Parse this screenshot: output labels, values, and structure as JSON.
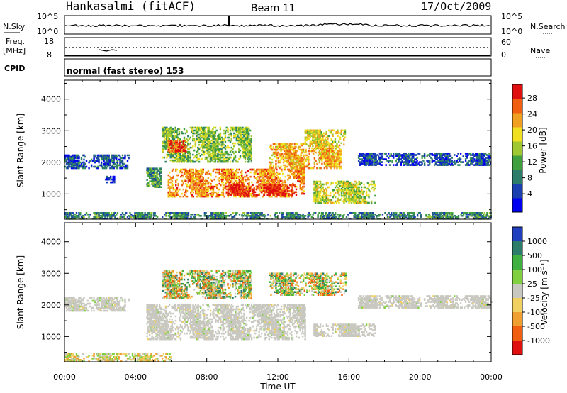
{
  "header": {
    "station": "Hankasalmi (fitACF)",
    "beam": "Beam 11",
    "date": "17/Oct/2009"
  },
  "nsky_panel": {
    "label": "N.Sky",
    "ticks": [
      "10^5",
      "10^0"
    ],
    "right_label": "N.Search",
    "right_ticks": [
      "10^5",
      "10^0"
    ]
  },
  "freq_panel": {
    "label_line1": "Freq.",
    "label_line2": "[MHz]",
    "ticks": [
      "18",
      "8"
    ],
    "right_label": "Nave",
    "right_ticks": [
      "60",
      "0"
    ]
  },
  "cpid_panel": {
    "label": "CPID",
    "text": "normal (fast stereo) 153"
  },
  "chart_data": [
    {
      "type": "heatmap",
      "name": "power",
      "ylabel": "Slant Range [km]",
      "yticks": [
        "4000",
        "3000",
        "2000",
        "1000"
      ],
      "ylim": [
        200,
        4600
      ],
      "xlim": [
        0,
        24
      ],
      "colorbar": {
        "label": "Power [dB]",
        "ticks": [
          "28",
          "24",
          "20",
          "16",
          "12",
          "8",
          "4"
        ],
        "colors": [
          "#0000f0",
          "#1a40b0",
          "#2e7d6a",
          "#40a040",
          "#a0c830",
          "#f0e020",
          "#f0a020",
          "#f06010",
          "#e01010"
        ]
      },
      "regions": [
        {
          "t0": 0.0,
          "t1": 3.6,
          "r0": 1800,
          "r1": 2250,
          "level": 0.2
        },
        {
          "t0": 2.2,
          "t1": 2.8,
          "r0": 1350,
          "r1": 1550,
          "level": 0.12
        },
        {
          "t0": 4.6,
          "t1": 5.4,
          "r0": 1200,
          "r1": 1800,
          "level": 0.35
        },
        {
          "t0": 5.5,
          "t1": 10.5,
          "r0": 2000,
          "r1": 3100,
          "level": 0.45
        },
        {
          "t0": 5.8,
          "t1": 6.8,
          "r0": 2300,
          "r1": 2700,
          "level": 0.85
        },
        {
          "t0": 5.8,
          "t1": 13.5,
          "r0": 900,
          "r1": 1800,
          "level": 0.75
        },
        {
          "t0": 9.0,
          "t1": 13.0,
          "r0": 950,
          "r1": 1300,
          "level": 0.95
        },
        {
          "t0": 11.5,
          "t1": 15.5,
          "r0": 1800,
          "r1": 2600,
          "level": 0.7
        },
        {
          "t0": 13.5,
          "t1": 15.8,
          "r0": 2500,
          "r1": 3000,
          "level": 0.6
        },
        {
          "t0": 14.0,
          "t1": 17.5,
          "r0": 700,
          "r1": 1400,
          "level": 0.55
        },
        {
          "t0": 16.5,
          "t1": 24.0,
          "r0": 1900,
          "r1": 2300,
          "level": 0.18
        },
        {
          "t0": 0.0,
          "t1": 24.0,
          "r0": 200,
          "r1": 400,
          "level": 0.3
        }
      ]
    },
    {
      "type": "heatmap",
      "name": "velocity",
      "ylabel": "Slant Range [km]",
      "yticks": [
        "4000",
        "3000",
        "2000",
        "1000"
      ],
      "ylim": [
        200,
        4600
      ],
      "xlim": [
        0,
        24
      ],
      "xticks": [
        "00:00",
        "04:00",
        "08:00",
        "12:00",
        "16:00",
        "20:00",
        "00:00"
      ],
      "xlabel": "Time UT",
      "colorbar": {
        "label": "Velocity [m s⁻¹]",
        "ticks": [
          "1000",
          "500",
          "100",
          "25",
          "-25",
          "-100",
          "-500",
          "-1000"
        ],
        "colors": [
          "#2040c0",
          "#2e7d6a",
          "#40b040",
          "#80d040",
          "#c8c8c0",
          "#f0d060",
          "#f0a030",
          "#f06010",
          "#e01010"
        ]
      },
      "regions": [
        {
          "t0": 0.0,
          "t1": 3.6,
          "r0": 1800,
          "r1": 2250,
          "kind": "gray"
        },
        {
          "t0": 4.6,
          "t1": 13.5,
          "r0": 900,
          "r1": 2000,
          "kind": "gray"
        },
        {
          "t0": 5.5,
          "t1": 10.5,
          "r0": 2200,
          "r1": 3100,
          "kind": "mixed"
        },
        {
          "t0": 11.5,
          "t1": 15.8,
          "r0": 2300,
          "r1": 3000,
          "kind": "mixed"
        },
        {
          "t0": 14.0,
          "t1": 17.5,
          "r0": 1000,
          "r1": 1400,
          "kind": "gray"
        },
        {
          "t0": 16.5,
          "t1": 24.0,
          "r0": 1900,
          "r1": 2300,
          "kind": "gray"
        },
        {
          "t0": 0.0,
          "t1": 6.0,
          "r0": 200,
          "r1": 450,
          "kind": "orange"
        }
      ]
    }
  ]
}
